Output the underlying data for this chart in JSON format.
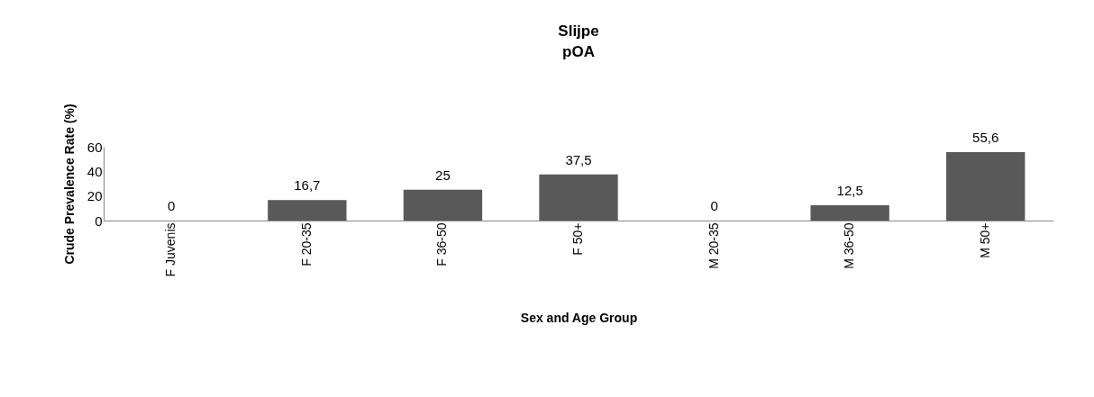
{
  "chart_data": {
    "type": "bar",
    "title": "Slijpe",
    "subtitle": "pOA",
    "xlabel": "Sex and Age Group",
    "ylabel": "Crude Prevalence Rate (%)",
    "categories": [
      "F Juvenis",
      "F 20-35",
      "F 36-50",
      "F 50+",
      "M 20-35",
      "M 36-50",
      "M 50+"
    ],
    "values": [
      0,
      16.7,
      25,
      37.5,
      0,
      12.5,
      55.6
    ],
    "value_labels": [
      "0",
      "16,7",
      "25",
      "37,5",
      "0",
      "12,5",
      "55,6"
    ],
    "color": "#595959",
    "ylim": [
      0,
      60
    ],
    "yticks": [
      0,
      20,
      40,
      60
    ],
    "grid": false
  }
}
